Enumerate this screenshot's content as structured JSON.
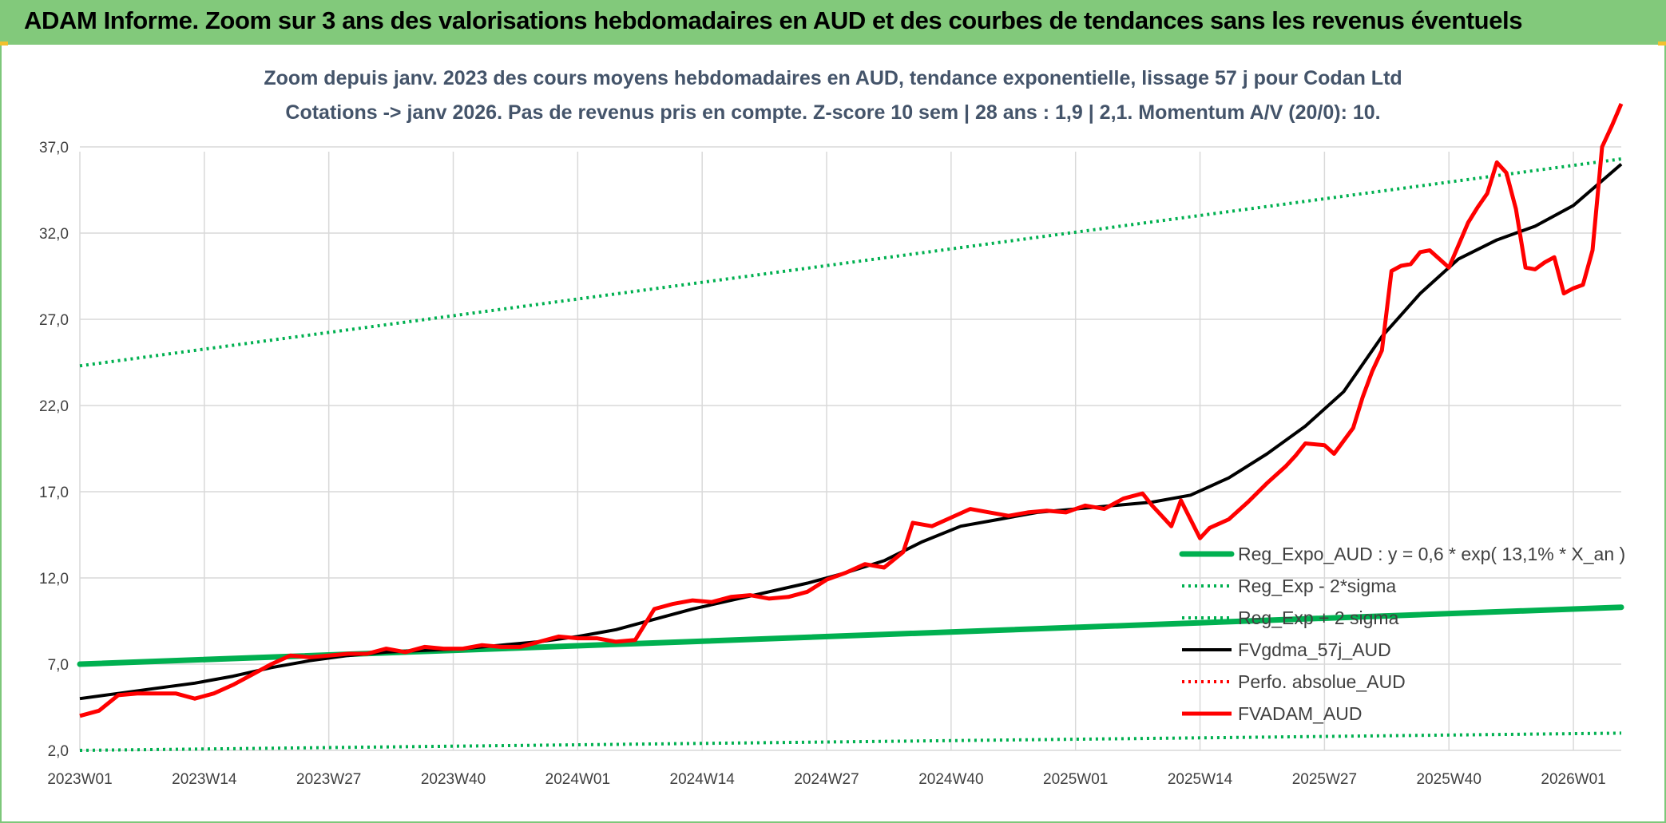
{
  "banner": {
    "title": "ADAM Informe. Zoom sur 3 ans des valorisations hebdomadaires en AUD et des courbes de tendances sans les revenus éventuels"
  },
  "colors": {
    "banner": "#82c97b",
    "title_text": "#44546a",
    "regression": "#00b050",
    "sigma": "#00b050",
    "fvgdma": "#000000",
    "perfo": "#ff0000",
    "fvadam": "#ff0000"
  },
  "chart_data": {
    "type": "line",
    "title": "Zoom depuis janv. 2023 des cours moyens hebdomadaires en AUD, tendance exponentielle, lissage 57 j pour Codan Ltd",
    "subtitle": "Cotations -> janv 2026. Pas de revenus pris en compte. Z-score 10 sem | 28 ans : 1,9 | 2,1. Momentum A/V (20/0): 10.",
    "xlabel": "",
    "ylabel": "",
    "x_ticks": [
      "2023W01",
      "2023W14",
      "2023W27",
      "2023W40",
      "2024W01",
      "2024W14",
      "2024W27",
      "2024W40",
      "2025W01",
      "2025W14",
      "2025W27",
      "2025W40",
      "2026W01"
    ],
    "y_ticks": [
      "2,0",
      "7,0",
      "12,0",
      "17,0",
      "22,0",
      "27,0",
      "32,0",
      "37,0"
    ],
    "ylim": [
      2,
      40
    ],
    "x_unit": "weeks since 2023W01",
    "grid": "horizontal and vertical",
    "legend_position": "lower-right",
    "series": [
      {
        "name": "Reg_Expo_AUD : y = 0,6 * exp( 13,1% *  X_an )",
        "style": "thick-solid",
        "color": "#00b050",
        "points": [
          [
            0,
            7.0
          ],
          [
            161,
            10.3
          ]
        ]
      },
      {
        "name": "Reg_Exp - 2*sigma",
        "style": "dotted",
        "color": "#00b050",
        "points": [
          [
            0,
            2.0
          ],
          [
            161,
            3.0
          ]
        ]
      },
      {
        "name": "Reg_Exp + 2 sigma",
        "style": "dotted",
        "color": "#00b050",
        "points": [
          [
            0,
            24.3
          ],
          [
            161,
            36.3
          ]
        ]
      },
      {
        "name": "FVgdma_57j_AUD",
        "style": "solid",
        "color": "#000000",
        "points": [
          [
            0,
            5.0
          ],
          [
            4,
            5.3
          ],
          [
            8,
            5.6
          ],
          [
            12,
            5.9
          ],
          [
            16,
            6.3
          ],
          [
            20,
            6.8
          ],
          [
            24,
            7.2
          ],
          [
            28,
            7.5
          ],
          [
            32,
            7.7
          ],
          [
            36,
            7.8
          ],
          [
            40,
            7.9
          ],
          [
            44,
            8.1
          ],
          [
            48,
            8.3
          ],
          [
            52,
            8.6
          ],
          [
            56,
            9.0
          ],
          [
            60,
            9.6
          ],
          [
            64,
            10.2
          ],
          [
            68,
            10.7
          ],
          [
            72,
            11.2
          ],
          [
            76,
            11.7
          ],
          [
            80,
            12.3
          ],
          [
            84,
            13.0
          ],
          [
            88,
            14.1
          ],
          [
            92,
            15.0
          ],
          [
            96,
            15.4
          ],
          [
            100,
            15.8
          ],
          [
            104,
            16.0
          ],
          [
            108,
            16.2
          ],
          [
            112,
            16.4
          ],
          [
            116,
            16.8
          ],
          [
            120,
            17.8
          ],
          [
            124,
            19.2
          ],
          [
            128,
            20.8
          ],
          [
            132,
            22.8
          ],
          [
            136,
            26.0
          ],
          [
            140,
            28.5
          ],
          [
            144,
            30.5
          ],
          [
            148,
            31.6
          ],
          [
            152,
            32.4
          ],
          [
            156,
            33.6
          ],
          [
            161,
            36.0
          ]
        ]
      },
      {
        "name": "Perfo. absolue_AUD",
        "style": "dotted",
        "color": "#ff0000",
        "points": []
      },
      {
        "name": "FVADAM_AUD",
        "style": "solid",
        "color": "#ff0000",
        "points": [
          [
            0,
            4.0
          ],
          [
            2,
            4.3
          ],
          [
            4,
            5.2
          ],
          [
            6,
            5.3
          ],
          [
            8,
            5.3
          ],
          [
            10,
            5.3
          ],
          [
            12,
            5.0
          ],
          [
            14,
            5.3
          ],
          [
            16,
            5.8
          ],
          [
            18,
            6.4
          ],
          [
            20,
            7.0
          ],
          [
            22,
            7.5
          ],
          [
            24,
            7.4
          ],
          [
            26,
            7.5
          ],
          [
            28,
            7.6
          ],
          [
            30,
            7.6
          ],
          [
            32,
            7.9
          ],
          [
            34,
            7.7
          ],
          [
            36,
            8.0
          ],
          [
            38,
            7.9
          ],
          [
            40,
            7.9
          ],
          [
            42,
            8.1
          ],
          [
            44,
            8.0
          ],
          [
            46,
            8.0
          ],
          [
            48,
            8.3
          ],
          [
            50,
            8.6
          ],
          [
            52,
            8.5
          ],
          [
            54,
            8.5
          ],
          [
            56,
            8.3
          ],
          [
            58,
            8.4
          ],
          [
            60,
            10.2
          ],
          [
            62,
            10.5
          ],
          [
            64,
            10.7
          ],
          [
            66,
            10.6
          ],
          [
            68,
            10.9
          ],
          [
            70,
            11.0
          ],
          [
            72,
            10.8
          ],
          [
            74,
            10.9
          ],
          [
            76,
            11.2
          ],
          [
            78,
            11.9
          ],
          [
            80,
            12.3
          ],
          [
            82,
            12.8
          ],
          [
            84,
            12.6
          ],
          [
            86,
            13.5
          ],
          [
            87,
            15.2
          ],
          [
            89,
            15.0
          ],
          [
            91,
            15.5
          ],
          [
            93,
            16.0
          ],
          [
            95,
            15.8
          ],
          [
            97,
            15.6
          ],
          [
            99,
            15.8
          ],
          [
            101,
            15.9
          ],
          [
            103,
            15.8
          ],
          [
            105,
            16.2
          ],
          [
            107,
            16.0
          ],
          [
            109,
            16.6
          ],
          [
            111,
            16.9
          ],
          [
            112,
            16.2
          ],
          [
            113,
            15.6
          ],
          [
            114,
            15.0
          ],
          [
            115,
            16.5
          ],
          [
            117,
            14.3
          ],
          [
            118,
            14.9
          ],
          [
            120,
            15.4
          ],
          [
            122,
            16.4
          ],
          [
            124,
            17.5
          ],
          [
            126,
            18.5
          ],
          [
            127,
            19.1
          ],
          [
            128,
            19.8
          ],
          [
            130,
            19.7
          ],
          [
            131,
            19.2
          ],
          [
            133,
            20.7
          ],
          [
            134,
            22.5
          ],
          [
            135,
            24.0
          ],
          [
            136,
            25.2
          ],
          [
            137,
            29.8
          ],
          [
            138,
            30.1
          ],
          [
            139,
            30.2
          ],
          [
            140,
            30.9
          ],
          [
            141,
            31.0
          ],
          [
            142,
            30.5
          ],
          [
            143,
            30.0
          ],
          [
            144,
            31.3
          ],
          [
            145,
            32.6
          ],
          [
            146,
            33.5
          ],
          [
            147,
            34.3
          ],
          [
            148,
            36.1
          ],
          [
            149,
            35.5
          ],
          [
            150,
            33.4
          ],
          [
            151,
            30.0
          ],
          [
            152,
            29.9
          ],
          [
            153,
            30.3
          ],
          [
            154,
            30.6
          ],
          [
            155,
            28.5
          ],
          [
            156,
            28.8
          ],
          [
            157,
            29.0
          ],
          [
            158,
            31.0
          ],
          [
            159,
            37.0
          ],
          [
            160,
            38.2
          ],
          [
            161,
            39.5
          ]
        ]
      }
    ]
  }
}
